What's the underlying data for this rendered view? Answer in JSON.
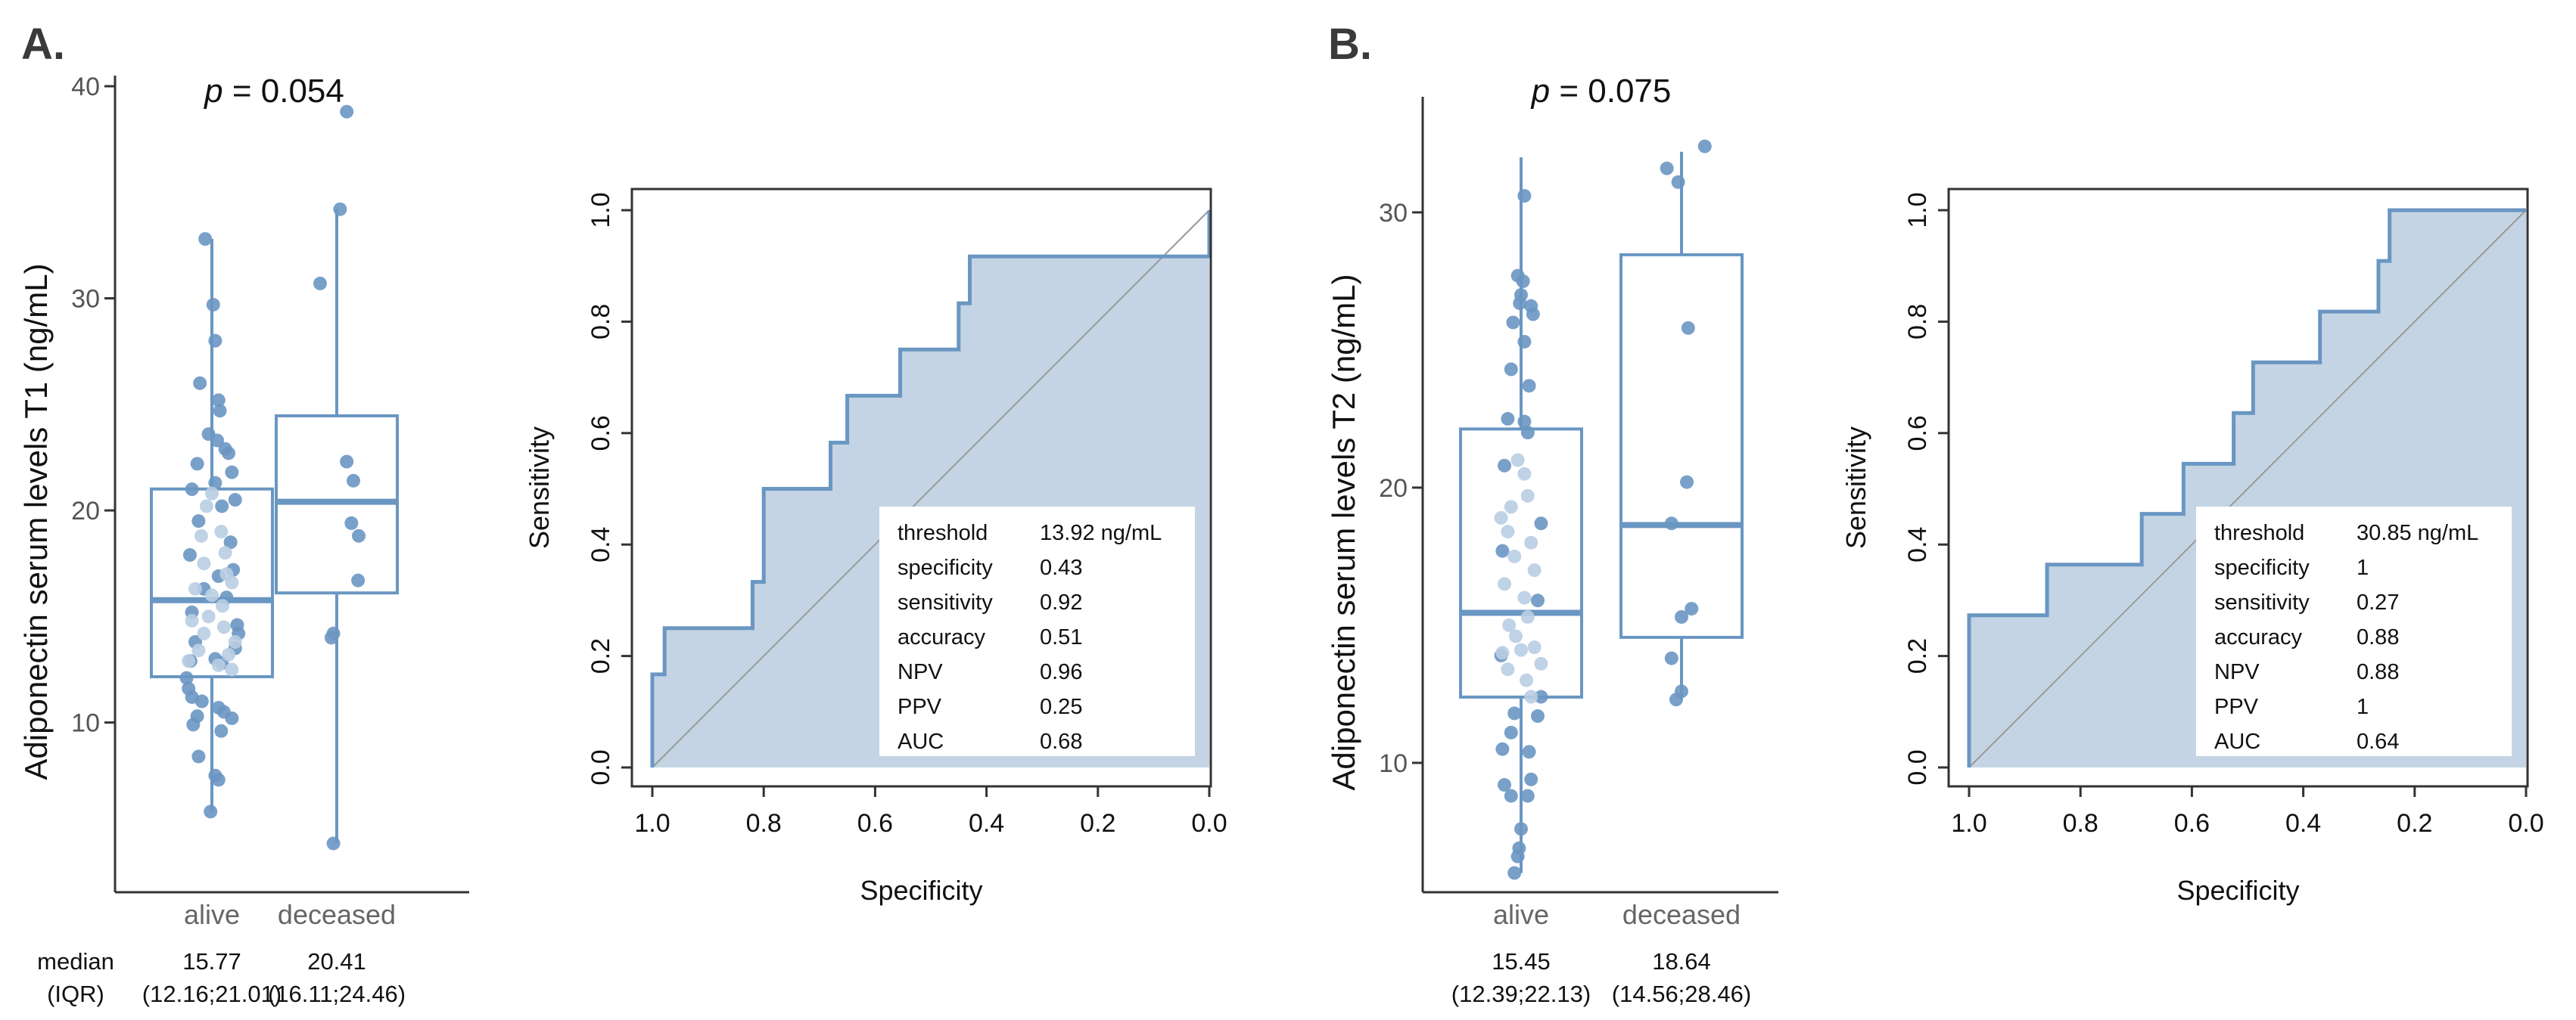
{
  "colors": {
    "box": "#6a96c2",
    "median": "#6a96c2",
    "dot_dark": "#6a96c2",
    "dot_light": "#b9cde2",
    "roc_fill": "#c4d4e4",
    "roc_line": "#6a96c2",
    "diag": "#9a9a9a",
    "axis": "#333333"
  },
  "stats_label": {
    "median": "median",
    "iqr": "(IQR)"
  },
  "chart_data": [
    {
      "id": "boxA",
      "type": "box",
      "panel_label": "A.",
      "title": "p = 0.054",
      "ylabel": "Adiponectin serum levels T1 (ng/mL)",
      "ylim": [
        2,
        40.5
      ],
      "yticks": [
        10,
        20,
        30,
        40
      ],
      "categories": [
        "alive",
        "deceased"
      ],
      "boxes": [
        {
          "q1": 12.16,
          "median": 15.77,
          "q3": 21.01,
          "whisker_low": 5.8,
          "whisker_high": 32.8
        },
        {
          "q1": 16.11,
          "median": 20.41,
          "q3": 24.46,
          "whisker_low": 4.3,
          "whisker_high": 34.2
        }
      ],
      "stats": [
        {
          "median": "15.77",
          "iqr": "(12.16;21.01)"
        },
        {
          "median": "20.41",
          "iqr": "(16.11;24.46)"
        }
      ],
      "points": [
        [
          [
            -0.1,
            32.8,
            1
          ],
          [
            0.02,
            29.7,
            1
          ],
          [
            0.05,
            28.0,
            1
          ],
          [
            -0.18,
            26.0,
            1
          ],
          [
            0.1,
            25.2,
            1
          ],
          [
            0.12,
            24.7,
            1
          ],
          [
            -0.05,
            23.6,
            1
          ],
          [
            0.08,
            23.3,
            1
          ],
          [
            0.2,
            22.9,
            1
          ],
          [
            0.25,
            22.7,
            1
          ],
          [
            -0.22,
            22.2,
            1
          ],
          [
            0.3,
            21.8,
            1
          ],
          [
            0.05,
            21.3,
            1
          ],
          [
            -0.3,
            21.0,
            1
          ],
          [
            0.35,
            20.5,
            1
          ],
          [
            0.15,
            20.2,
            1
          ],
          [
            -0.2,
            19.5,
            1
          ],
          [
            0.28,
            18.5,
            1
          ],
          [
            -0.33,
            17.9,
            1
          ],
          [
            0.32,
            17.2,
            1
          ],
          [
            0.1,
            16.9,
            1
          ],
          [
            -0.12,
            16.3,
            1
          ],
          [
            0.22,
            15.9,
            1
          ],
          [
            -0.3,
            15.2,
            1
          ],
          [
            0.38,
            14.6,
            1
          ],
          [
            0.4,
            14.2,
            1
          ],
          [
            -0.25,
            13.8,
            1
          ],
          [
            0.35,
            13.5,
            1
          ],
          [
            0.05,
            13.0,
            1
          ],
          [
            -0.32,
            12.9,
            1
          ],
          [
            0.15,
            12.8,
            1
          ],
          [
            -0.38,
            12.1,
            1
          ],
          [
            -0.35,
            11.6,
            1
          ],
          [
            -0.3,
            11.2,
            1
          ],
          [
            -0.15,
            11.0,
            1
          ],
          [
            0.1,
            10.7,
            1
          ],
          [
            0.18,
            10.5,
            1
          ],
          [
            -0.22,
            10.3,
            1
          ],
          [
            0.3,
            10.2,
            1
          ],
          [
            -0.28,
            9.9,
            1
          ],
          [
            0.14,
            9.6,
            1
          ],
          [
            -0.2,
            8.4,
            1
          ],
          [
            0.05,
            7.5,
            1
          ],
          [
            0.1,
            7.3,
            1
          ],
          [
            -0.02,
            5.8,
            1
          ],
          [
            0.0,
            20.8,
            0
          ],
          [
            -0.08,
            20.2,
            0
          ],
          [
            0.14,
            19.0,
            0
          ],
          [
            -0.16,
            18.8,
            0
          ],
          [
            0.2,
            18.0,
            0
          ],
          [
            -0.12,
            17.5,
            0
          ],
          [
            0.22,
            17.0,
            0
          ],
          [
            0.3,
            16.6,
            0
          ],
          [
            -0.25,
            16.3,
            0
          ],
          [
            0.0,
            16.0,
            0
          ],
          [
            0.16,
            15.5,
            0
          ],
          [
            -0.05,
            15.0,
            0
          ],
          [
            -0.3,
            14.8,
            0
          ],
          [
            0.18,
            14.5,
            0
          ],
          [
            -0.12,
            14.2,
            0
          ],
          [
            0.35,
            13.8,
            0
          ],
          [
            -0.2,
            13.4,
            0
          ],
          [
            0.25,
            13.2,
            0
          ],
          [
            -0.35,
            12.9,
            0
          ],
          [
            0.1,
            12.7,
            0
          ],
          [
            0.3,
            12.5,
            0
          ]
        ],
        [
          [
            0.15,
            38.8,
            1
          ],
          [
            0.05,
            34.2,
            1
          ],
          [
            -0.25,
            30.7,
            1
          ],
          [
            0.25,
            21.4,
            1
          ],
          [
            0.15,
            22.3,
            1
          ],
          [
            0.22,
            19.4,
            1
          ],
          [
            0.33,
            18.8,
            1
          ],
          [
            0.32,
            16.7,
            1
          ],
          [
            -0.05,
            14.2,
            1
          ],
          [
            -0.08,
            14.0,
            1
          ],
          [
            -0.05,
            4.3,
            1
          ]
        ]
      ]
    },
    {
      "id": "rocA",
      "type": "roc",
      "xlabel": "Specificity",
      "ylabel": "Sensitivity",
      "xticks": [
        1.0,
        0.8,
        0.6,
        0.4,
        0.2,
        0.0
      ],
      "yticks": [
        0.0,
        0.2,
        0.4,
        0.6,
        0.8,
        1.0
      ],
      "curve": [
        [
          1.0,
          0.0
        ],
        [
          1.0,
          0.167
        ],
        [
          0.978,
          0.167
        ],
        [
          0.978,
          0.25
        ],
        [
          0.82,
          0.25
        ],
        [
          0.82,
          0.333
        ],
        [
          0.8,
          0.333
        ],
        [
          0.8,
          0.5
        ],
        [
          0.68,
          0.5
        ],
        [
          0.68,
          0.583
        ],
        [
          0.65,
          0.583
        ],
        [
          0.65,
          0.667
        ],
        [
          0.555,
          0.667
        ],
        [
          0.555,
          0.75
        ],
        [
          0.45,
          0.75
        ],
        [
          0.45,
          0.833
        ],
        [
          0.43,
          0.833
        ],
        [
          0.43,
          0.917
        ],
        [
          0.0,
          0.917
        ],
        [
          0.0,
          1.0
        ]
      ],
      "table": [
        [
          "threshold",
          "13.92 ng/mL"
        ],
        [
          "specificity",
          "0.43"
        ],
        [
          "sensitivity",
          "0.92"
        ],
        [
          "accuracy",
          "0.51"
        ],
        [
          "NPV",
          "0.96"
        ],
        [
          "PPV",
          "0.25"
        ],
        [
          "AUC",
          "0.68"
        ]
      ]
    },
    {
      "id": "boxB",
      "type": "box",
      "panel_label": "B.",
      "title": "p = 0.075",
      "ylabel": "Adiponectin serum levels T2 (ng/mL)",
      "ylim": [
        5.3,
        34.2
      ],
      "yticks": [
        10,
        20,
        30
      ],
      "categories": [
        "alive",
        "deceased"
      ],
      "boxes": [
        {
          "q1": 12.39,
          "median": 15.45,
          "q3": 22.13,
          "whisker_low": 6.0,
          "whisker_high": 32.0
        },
        {
          "q1": 14.56,
          "median": 18.64,
          "q3": 28.46,
          "whisker_low": 12.3,
          "whisker_high": 32.2
        }
      ],
      "stats": [
        {
          "median": "15.45",
          "iqr": "(12.39;22.13)"
        },
        {
          "median": "18.64",
          "iqr": "(14.56;28.46)"
        }
      ],
      "points": [
        [
          [
            0.05,
            30.6,
            1
          ],
          [
            -0.05,
            27.7,
            1
          ],
          [
            0.03,
            27.5,
            1
          ],
          [
            0.0,
            27.0,
            1
          ],
          [
            -0.02,
            26.7,
            1
          ],
          [
            0.15,
            26.6,
            1
          ],
          [
            0.18,
            26.3,
            1
          ],
          [
            -0.12,
            26.0,
            1
          ],
          [
            0.05,
            25.3,
            1
          ],
          [
            -0.15,
            24.3,
            1
          ],
          [
            0.12,
            23.7,
            1
          ],
          [
            0.05,
            22.4,
            1
          ],
          [
            -0.2,
            22.5,
            1
          ],
          [
            0.1,
            22.0,
            1
          ],
          [
            -0.25,
            20.8,
            1
          ],
          [
            0.3,
            18.7,
            1
          ],
          [
            -0.28,
            17.7,
            1
          ],
          [
            0.25,
            15.9,
            1
          ],
          [
            -0.3,
            13.9,
            1
          ],
          [
            0.3,
            12.4,
            1
          ],
          [
            -0.1,
            11.8,
            1
          ],
          [
            0.25,
            11.7,
            1
          ],
          [
            -0.15,
            11.1,
            1
          ],
          [
            0.12,
            10.4,
            1
          ],
          [
            -0.28,
            10.5,
            1
          ],
          [
            0.15,
            9.4,
            1
          ],
          [
            -0.25,
            9.2,
            1
          ],
          [
            -0.15,
            8.8,
            1
          ],
          [
            0.1,
            8.8,
            1
          ],
          [
            0.0,
            7.6,
            1
          ],
          [
            -0.03,
            6.9,
            1
          ],
          [
            -0.05,
            6.6,
            1
          ],
          [
            -0.1,
            6.0,
            1
          ],
          [
            -0.05,
            21.0,
            0
          ],
          [
            0.05,
            20.5,
            0
          ],
          [
            -0.15,
            19.3,
            0
          ],
          [
            0.1,
            19.7,
            0
          ],
          [
            -0.3,
            18.9,
            0
          ],
          [
            -0.2,
            18.4,
            0
          ],
          [
            0.15,
            18.0,
            0
          ],
          [
            -0.1,
            17.5,
            0
          ],
          [
            0.2,
            17.0,
            0
          ],
          [
            -0.25,
            16.5,
            0
          ],
          [
            0.05,
            16.0,
            0
          ],
          [
            0.1,
            15.3,
            0
          ],
          [
            -0.18,
            15.0,
            0
          ],
          [
            -0.08,
            14.6,
            0
          ],
          [
            0.2,
            14.2,
            0
          ],
          [
            -0.28,
            14.0,
            0
          ],
          [
            0.0,
            14.1,
            0
          ],
          [
            0.3,
            13.6,
            0
          ],
          [
            -0.2,
            13.4,
            0
          ],
          [
            0.08,
            13.0,
            0
          ],
          [
            0.15,
            12.4,
            0
          ]
        ],
        [
          [
            0.35,
            32.4,
            1
          ],
          [
            -0.22,
            31.6,
            1
          ],
          [
            -0.05,
            31.1,
            1
          ],
          [
            0.1,
            25.8,
            1
          ],
          [
            0.08,
            20.2,
            1
          ],
          [
            -0.15,
            18.7,
            1
          ],
          [
            0.15,
            15.6,
            1
          ],
          [
            0.0,
            15.3,
            1
          ],
          [
            -0.15,
            13.8,
            1
          ],
          [
            0.0,
            12.6,
            1
          ],
          [
            -0.08,
            12.3,
            1
          ]
        ]
      ]
    },
    {
      "id": "rocB",
      "type": "roc",
      "xlabel": "Specificity",
      "ylabel": "Sensitivity",
      "xticks": [
        1.0,
        0.8,
        0.6,
        0.4,
        0.2,
        0.0
      ],
      "yticks": [
        0.0,
        0.2,
        0.4,
        0.6,
        0.8,
        1.0
      ],
      "curve": [
        [
          1.0,
          0.0
        ],
        [
          1.0,
          0.273
        ],
        [
          0.86,
          0.273
        ],
        [
          0.86,
          0.364
        ],
        [
          0.69,
          0.364
        ],
        [
          0.69,
          0.455
        ],
        [
          0.615,
          0.455
        ],
        [
          0.615,
          0.545
        ],
        [
          0.525,
          0.545
        ],
        [
          0.525,
          0.636
        ],
        [
          0.49,
          0.636
        ],
        [
          0.49,
          0.727
        ],
        [
          0.37,
          0.727
        ],
        [
          0.37,
          0.818
        ],
        [
          0.265,
          0.818
        ],
        [
          0.265,
          0.909
        ],
        [
          0.245,
          0.909
        ],
        [
          0.245,
          1.0
        ],
        [
          0.0,
          1.0
        ]
      ],
      "table": [
        [
          "threshold",
          "30.85 ng/mL"
        ],
        [
          "specificity",
          "1"
        ],
        [
          "sensitivity",
          "0.27"
        ],
        [
          "accuracy",
          "0.88"
        ],
        [
          "NPV",
          "0.88"
        ],
        [
          "PPV",
          "1"
        ],
        [
          "AUC",
          "0.64"
        ]
      ]
    }
  ]
}
